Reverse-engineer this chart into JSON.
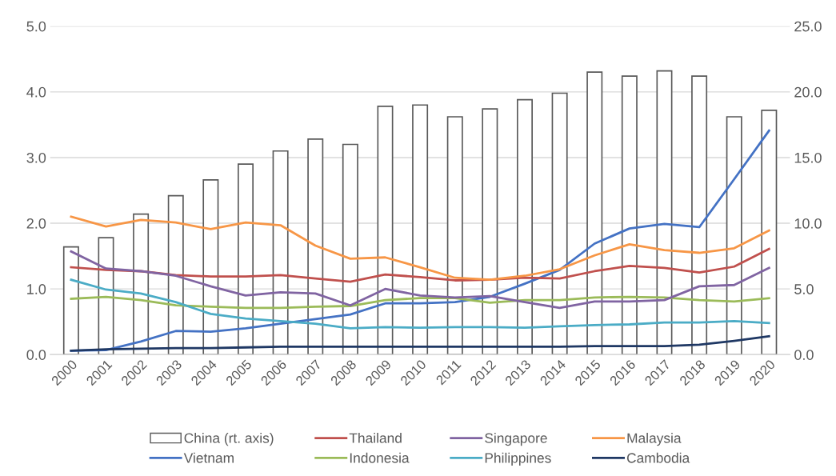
{
  "chart_data": {
    "type": "line",
    "categories": [
      "2000",
      "2001",
      "2002",
      "2003",
      "2004",
      "2005",
      "2006",
      "2007",
      "2008",
      "2009",
      "2010",
      "2011",
      "2012",
      "2013",
      "2014",
      "2015",
      "2016",
      "2017",
      "2018",
      "2019",
      "2020"
    ],
    "series": [
      {
        "name": "China (rt. axis)",
        "type": "bar",
        "axis": "y2",
        "color": "#ffffff",
        "values": [
          8.2,
          8.9,
          10.7,
          12.1,
          13.3,
          14.5,
          15.5,
          16.4,
          16.0,
          18.9,
          19.0,
          18.1,
          18.7,
          19.4,
          19.9,
          21.5,
          21.2,
          21.6,
          21.2,
          18.1,
          18.6
        ]
      },
      {
        "name": "Vietnam",
        "color": "#4472c4",
        "values": [
          0.06,
          0.07,
          0.2,
          0.36,
          0.35,
          0.4,
          0.47,
          0.54,
          0.61,
          0.78,
          0.78,
          0.8,
          0.88,
          1.08,
          1.29,
          1.69,
          1.92,
          1.99,
          1.94,
          2.67,
          3.41
        ]
      },
      {
        "name": "Thailand",
        "color": "#c0504d",
        "values": [
          1.33,
          1.29,
          1.27,
          1.21,
          1.19,
          1.19,
          1.21,
          1.16,
          1.11,
          1.22,
          1.18,
          1.13,
          1.14,
          1.17,
          1.16,
          1.27,
          1.35,
          1.32,
          1.25,
          1.34,
          1.61
        ]
      },
      {
        "name": "Indonesia",
        "color": "#9bbb59",
        "values": [
          0.85,
          0.88,
          0.83,
          0.75,
          0.73,
          0.71,
          0.71,
          0.73,
          0.74,
          0.83,
          0.86,
          0.86,
          0.79,
          0.83,
          0.83,
          0.87,
          0.88,
          0.87,
          0.83,
          0.81,
          0.86
        ]
      },
      {
        "name": "Singapore",
        "color": "#8064a2",
        "values": [
          1.57,
          1.31,
          1.27,
          1.2,
          1.04,
          0.9,
          0.95,
          0.93,
          0.75,
          1.0,
          0.9,
          0.87,
          0.89,
          0.8,
          0.71,
          0.81,
          0.81,
          0.83,
          1.04,
          1.06,
          1.32
        ]
      },
      {
        "name": "Philippines",
        "color": "#4bacc6",
        "values": [
          1.14,
          0.99,
          0.93,
          0.8,
          0.62,
          0.55,
          0.51,
          0.47,
          0.4,
          0.42,
          0.41,
          0.42,
          0.42,
          0.41,
          0.43,
          0.45,
          0.46,
          0.49,
          0.49,
          0.51,
          0.48
        ]
      },
      {
        "name": "Malaysia",
        "color": "#f79646",
        "values": [
          2.1,
          1.95,
          2.05,
          2.01,
          1.91,
          2.01,
          1.97,
          1.66,
          1.46,
          1.48,
          1.33,
          1.17,
          1.14,
          1.2,
          1.3,
          1.51,
          1.68,
          1.59,
          1.55,
          1.62,
          1.89
        ]
      },
      {
        "name": "Cambodia",
        "color": "#1f3864",
        "values": [
          0.06,
          0.08,
          0.09,
          0.1,
          0.1,
          0.11,
          0.12,
          0.12,
          0.12,
          0.12,
          0.12,
          0.12,
          0.12,
          0.12,
          0.12,
          0.13,
          0.13,
          0.13,
          0.15,
          0.21,
          0.28
        ]
      }
    ],
    "ylim": [
      0,
      5
    ],
    "yticks": [
      {
        "value": 0,
        "label": "0.0"
      },
      {
        "value": 1,
        "label": "1.0"
      },
      {
        "value": 2,
        "label": "2.0"
      },
      {
        "value": 3,
        "label": "3.0"
      },
      {
        "value": 4,
        "label": "4.0"
      },
      {
        "value": 5,
        "label": "5.0"
      }
    ],
    "y2lim": [
      0,
      25
    ],
    "y2ticks": [
      {
        "value": 0,
        "label": "0.0"
      },
      {
        "value": 5,
        "label": "5.0"
      },
      {
        "value": 10,
        "label": "10.0"
      },
      {
        "value": 15,
        "label": "15.0"
      },
      {
        "value": 20,
        "label": "20.0"
      },
      {
        "value": 25,
        "label": "25.0"
      }
    ],
    "grid": "y",
    "legend": "bottom",
    "marker": "none",
    "line_style": "solid"
  }
}
